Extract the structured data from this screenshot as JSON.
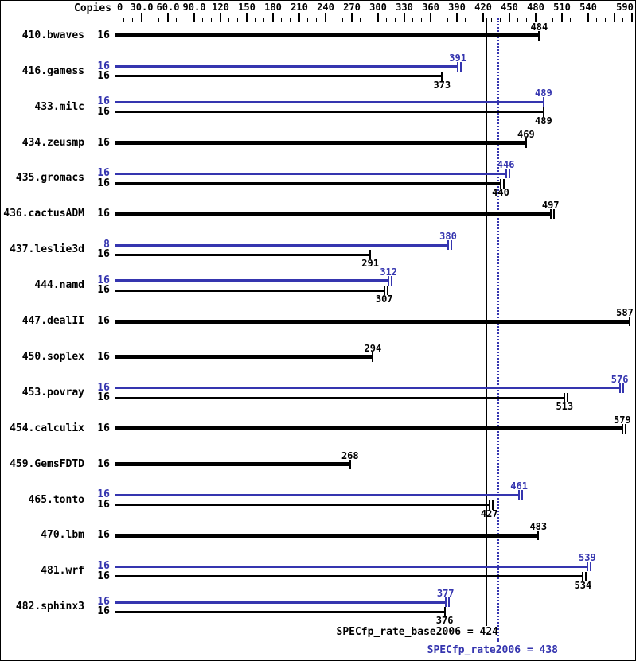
{
  "chart_data": {
    "type": "bar",
    "orientation": "horizontal",
    "title": "",
    "copies_header": "Copies",
    "xlim": [
      0,
      590
    ],
    "x_minor_step": 10,
    "x_major_step": 30,
    "grid": false,
    "x_tick_labels": [
      {
        "value": 0,
        "text": "0"
      },
      {
        "value": 30,
        "text": "30.0"
      },
      {
        "value": 60,
        "text": "60.0"
      },
      {
        "value": 90,
        "text": "90.0"
      },
      {
        "value": 120,
        "text": "120"
      },
      {
        "value": 150,
        "text": "150"
      },
      {
        "value": 180,
        "text": "180"
      },
      {
        "value": 210,
        "text": "210"
      },
      {
        "value": 240,
        "text": "240"
      },
      {
        "value": 270,
        "text": "270"
      },
      {
        "value": 300,
        "text": "300"
      },
      {
        "value": 330,
        "text": "330"
      },
      {
        "value": 360,
        "text": "360"
      },
      {
        "value": 390,
        "text": "390"
      },
      {
        "value": 420,
        "text": "420"
      },
      {
        "value": 450,
        "text": "450"
      },
      {
        "value": 480,
        "text": "480"
      },
      {
        "value": 510,
        "text": "510"
      },
      {
        "value": 540,
        "text": "540"
      },
      {
        "value": 590,
        "text": "590"
      }
    ],
    "benchmarks": [
      {
        "name": "410.bwaves",
        "bars": [
          {
            "copies": "16",
            "series": "base",
            "value": 484,
            "thick": true,
            "marker": "single",
            "label_pos": "above"
          }
        ]
      },
      {
        "name": "416.gamess",
        "bars": [
          {
            "copies": "16",
            "series": "peak",
            "value": 391,
            "thick": false,
            "marker": "double",
            "label_pos": "above"
          },
          {
            "copies": "16",
            "series": "base",
            "value": 373,
            "thick": false,
            "marker": "single",
            "label_pos": "below"
          }
        ]
      },
      {
        "name": "433.milc",
        "bars": [
          {
            "copies": "16",
            "series": "peak",
            "value": 489,
            "thick": false,
            "marker": "single",
            "label_pos": "above"
          },
          {
            "copies": "16",
            "series": "base",
            "value": 489,
            "thick": false,
            "marker": "single",
            "label_pos": "below"
          }
        ]
      },
      {
        "name": "434.zeusmp",
        "bars": [
          {
            "copies": "16",
            "series": "base",
            "value": 469,
            "thick": true,
            "marker": "single",
            "label_pos": "above"
          }
        ]
      },
      {
        "name": "435.gromacs",
        "bars": [
          {
            "copies": "16",
            "series": "peak",
            "value": 446,
            "thick": false,
            "marker": "double",
            "label_pos": "above"
          },
          {
            "copies": "16",
            "series": "base",
            "value": 440,
            "thick": false,
            "marker": "double",
            "label_pos": "below"
          }
        ]
      },
      {
        "name": "436.cactusADM",
        "bars": [
          {
            "copies": "16",
            "series": "base",
            "value": 497,
            "thick": true,
            "marker": "double",
            "label_pos": "above"
          }
        ]
      },
      {
        "name": "437.leslie3d",
        "bars": [
          {
            "copies": "8",
            "series": "peak",
            "value": 380,
            "thick": false,
            "marker": "double",
            "label_pos": "above"
          },
          {
            "copies": "16",
            "series": "base",
            "value": 291,
            "thick": false,
            "marker": "single",
            "label_pos": "below"
          }
        ]
      },
      {
        "name": "444.namd",
        "bars": [
          {
            "copies": "16",
            "series": "peak",
            "value": 312,
            "thick": false,
            "marker": "double",
            "label_pos": "above"
          },
          {
            "copies": "16",
            "series": "base",
            "value": 307,
            "thick": false,
            "marker": "double",
            "label_pos": "below"
          }
        ]
      },
      {
        "name": "447.dealII",
        "bars": [
          {
            "copies": "16",
            "series": "base",
            "value": 587,
            "thick": true,
            "marker": "single",
            "label_pos": "above"
          }
        ]
      },
      {
        "name": "450.soplex",
        "bars": [
          {
            "copies": "16",
            "series": "base",
            "value": 294,
            "thick": true,
            "marker": "single",
            "label_pos": "above"
          }
        ]
      },
      {
        "name": "453.povray",
        "bars": [
          {
            "copies": "16",
            "series": "peak",
            "value": 576,
            "thick": false,
            "marker": "double",
            "label_pos": "above"
          },
          {
            "copies": "16",
            "series": "base",
            "value": 513,
            "thick": false,
            "marker": "double",
            "label_pos": "below"
          }
        ]
      },
      {
        "name": "454.calculix",
        "bars": [
          {
            "copies": "16",
            "series": "base",
            "value": 579,
            "thick": true,
            "marker": "double",
            "label_pos": "above"
          }
        ]
      },
      {
        "name": "459.GemsFDTD",
        "bars": [
          {
            "copies": "16",
            "series": "base",
            "value": 268,
            "thick": true,
            "marker": "single",
            "label_pos": "above"
          }
        ]
      },
      {
        "name": "465.tonto",
        "bars": [
          {
            "copies": "16",
            "series": "peak",
            "value": 461,
            "thick": false,
            "marker": "double",
            "label_pos": "above"
          },
          {
            "copies": "16",
            "series": "base",
            "value": 427,
            "thick": false,
            "marker": "double",
            "label_pos": "below"
          }
        ]
      },
      {
        "name": "470.lbm",
        "bars": [
          {
            "copies": "16",
            "series": "base",
            "value": 483,
            "thick": true,
            "marker": "single",
            "label_pos": "above"
          }
        ]
      },
      {
        "name": "481.wrf",
        "bars": [
          {
            "copies": "16",
            "series": "peak",
            "value": 539,
            "thick": false,
            "marker": "double",
            "label_pos": "above"
          },
          {
            "copies": "16",
            "series": "base",
            "value": 534,
            "thick": false,
            "marker": "double",
            "label_pos": "below"
          }
        ]
      },
      {
        "name": "482.sphinx3",
        "bars": [
          {
            "copies": "16",
            "series": "peak",
            "value": 377,
            "thick": false,
            "marker": "double",
            "label_pos": "above"
          },
          {
            "copies": "16",
            "series": "base",
            "value": 376,
            "thick": false,
            "marker": "single",
            "label_pos": "below"
          }
        ]
      }
    ],
    "reference_lines": [
      {
        "series": "base",
        "value": 424,
        "style": "solid"
      },
      {
        "series": "peak",
        "value": 438,
        "style": "dotted"
      }
    ],
    "summary": {
      "base_label": "SPECfp_rate_base2006 = 424",
      "base_value": 424,
      "peak_label": "SPECfp_rate2006 = 438",
      "peak_value": 438
    },
    "colors": {
      "base": "#000000",
      "peak": "#3535af"
    },
    "legend_position": "none"
  }
}
